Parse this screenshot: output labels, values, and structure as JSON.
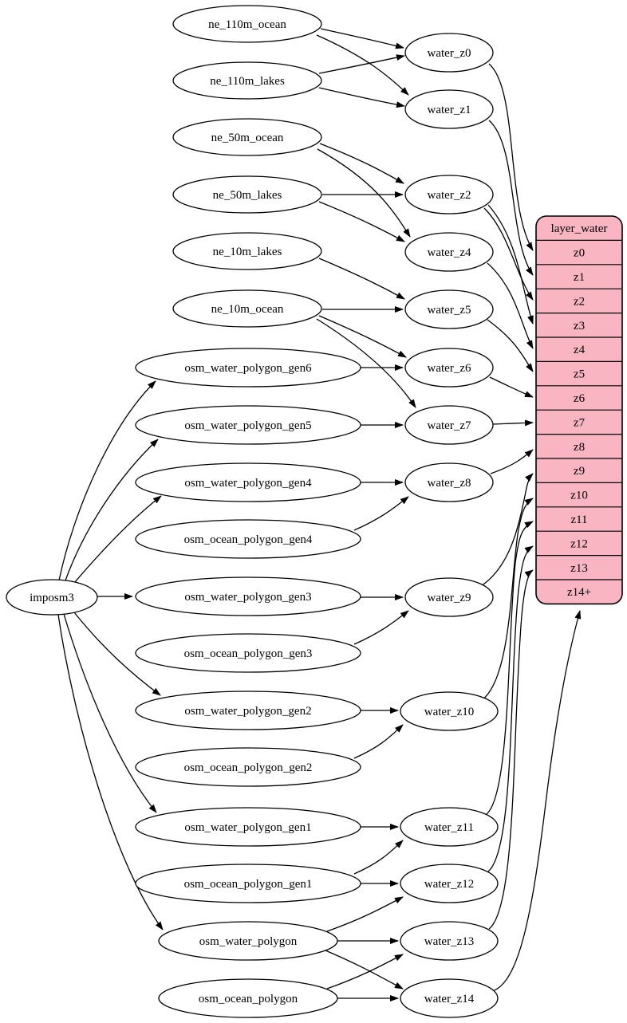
{
  "graph": {
    "colors": {
      "background": "#ffffff",
      "edge": "#000000",
      "node_fill": "#ffffff",
      "table_fill": "#f9b5c2",
      "table_stroke": "#000000"
    },
    "table": {
      "title": "layer_water",
      "rows": [
        "z0",
        "z1",
        "z2",
        "z3",
        "z4",
        "z5",
        "z6",
        "z7",
        "z8",
        "z9",
        "z10",
        "z11",
        "z12",
        "z13",
        "z14+"
      ]
    },
    "nodes": [
      {
        "id": "ne_110m_ocean",
        "label": "ne_110m_ocean",
        "kind": "source"
      },
      {
        "id": "ne_110m_lakes",
        "label": "ne_110m_lakes",
        "kind": "source"
      },
      {
        "id": "ne_50m_ocean",
        "label": "ne_50m_ocean",
        "kind": "source"
      },
      {
        "id": "ne_50m_lakes",
        "label": "ne_50m_lakes",
        "kind": "source"
      },
      {
        "id": "ne_10m_lakes",
        "label": "ne_10m_lakes",
        "kind": "source"
      },
      {
        "id": "ne_10m_ocean",
        "label": "ne_10m_ocean",
        "kind": "source"
      },
      {
        "id": "osm_water_polygon_gen6",
        "label": "osm_water_polygon_gen6",
        "kind": "source"
      },
      {
        "id": "osm_water_polygon_gen5",
        "label": "osm_water_polygon_gen5",
        "kind": "source"
      },
      {
        "id": "osm_water_polygon_gen4",
        "label": "osm_water_polygon_gen4",
        "kind": "source"
      },
      {
        "id": "osm_ocean_polygon_gen4",
        "label": "osm_ocean_polygon_gen4",
        "kind": "source"
      },
      {
        "id": "imposm3",
        "label": "imposm3",
        "kind": "importer"
      },
      {
        "id": "osm_water_polygon_gen3",
        "label": "osm_water_polygon_gen3",
        "kind": "source"
      },
      {
        "id": "osm_ocean_polygon_gen3",
        "label": "osm_ocean_polygon_gen3",
        "kind": "source"
      },
      {
        "id": "osm_water_polygon_gen2",
        "label": "osm_water_polygon_gen2",
        "kind": "source"
      },
      {
        "id": "osm_ocean_polygon_gen2",
        "label": "osm_ocean_polygon_gen2",
        "kind": "source"
      },
      {
        "id": "osm_water_polygon_gen1",
        "label": "osm_water_polygon_gen1",
        "kind": "source"
      },
      {
        "id": "osm_ocean_polygon_gen1",
        "label": "osm_ocean_polygon_gen1",
        "kind": "source"
      },
      {
        "id": "osm_water_polygon",
        "label": "osm_water_polygon",
        "kind": "source"
      },
      {
        "id": "osm_ocean_polygon",
        "label": "osm_ocean_polygon",
        "kind": "source"
      },
      {
        "id": "water_z0",
        "label": "water_z0",
        "kind": "intermediate"
      },
      {
        "id": "water_z1",
        "label": "water_z1",
        "kind": "intermediate"
      },
      {
        "id": "water_z2",
        "label": "water_z2",
        "kind": "intermediate"
      },
      {
        "id": "water_z4",
        "label": "water_z4",
        "kind": "intermediate"
      },
      {
        "id": "water_z5",
        "label": "water_z5",
        "kind": "intermediate"
      },
      {
        "id": "water_z6",
        "label": "water_z6",
        "kind": "intermediate"
      },
      {
        "id": "water_z7",
        "label": "water_z7",
        "kind": "intermediate"
      },
      {
        "id": "water_z8",
        "label": "water_z8",
        "kind": "intermediate"
      },
      {
        "id": "water_z9",
        "label": "water_z9",
        "kind": "intermediate"
      },
      {
        "id": "water_z10",
        "label": "water_z10",
        "kind": "intermediate"
      },
      {
        "id": "water_z11",
        "label": "water_z11",
        "kind": "intermediate"
      },
      {
        "id": "water_z12",
        "label": "water_z12",
        "kind": "intermediate"
      },
      {
        "id": "water_z13",
        "label": "water_z13",
        "kind": "intermediate"
      },
      {
        "id": "water_z14",
        "label": "water_z14",
        "kind": "intermediate"
      }
    ],
    "edges": [
      {
        "from": "ne_110m_ocean",
        "to": "water_z0"
      },
      {
        "from": "ne_110m_ocean",
        "to": "water_z1"
      },
      {
        "from": "ne_110m_lakes",
        "to": "water_z0"
      },
      {
        "from": "ne_110m_lakes",
        "to": "water_z1"
      },
      {
        "from": "ne_50m_ocean",
        "to": "water_z2"
      },
      {
        "from": "ne_50m_ocean",
        "to": "water_z4"
      },
      {
        "from": "ne_50m_lakes",
        "to": "water_z2"
      },
      {
        "from": "ne_50m_lakes",
        "to": "water_z4"
      },
      {
        "from": "ne_10m_lakes",
        "to": "water_z5"
      },
      {
        "from": "ne_10m_ocean",
        "to": "water_z5"
      },
      {
        "from": "ne_10m_ocean",
        "to": "water_z6"
      },
      {
        "from": "ne_10m_ocean",
        "to": "water_z7"
      },
      {
        "from": "osm_water_polygon_gen6",
        "to": "water_z6"
      },
      {
        "from": "osm_water_polygon_gen5",
        "to": "water_z7"
      },
      {
        "from": "osm_water_polygon_gen4",
        "to": "water_z8"
      },
      {
        "from": "osm_ocean_polygon_gen4",
        "to": "water_z8"
      },
      {
        "from": "osm_water_polygon_gen3",
        "to": "water_z9"
      },
      {
        "from": "osm_ocean_polygon_gen3",
        "to": "water_z9"
      },
      {
        "from": "osm_water_polygon_gen2",
        "to": "water_z10"
      },
      {
        "from": "osm_ocean_polygon_gen2",
        "to": "water_z10"
      },
      {
        "from": "osm_water_polygon_gen1",
        "to": "water_z11"
      },
      {
        "from": "osm_ocean_polygon_gen1",
        "to": "water_z11"
      },
      {
        "from": "osm_ocean_polygon_gen1",
        "to": "water_z12"
      },
      {
        "from": "osm_water_polygon",
        "to": "water_z12"
      },
      {
        "from": "osm_water_polygon",
        "to": "water_z13"
      },
      {
        "from": "osm_ocean_polygon",
        "to": "water_z13"
      },
      {
        "from": "osm_water_polygon",
        "to": "water_z14"
      },
      {
        "from": "osm_ocean_polygon",
        "to": "water_z14"
      },
      {
        "from": "imposm3",
        "to": "osm_water_polygon_gen6"
      },
      {
        "from": "imposm3",
        "to": "osm_water_polygon_gen5"
      },
      {
        "from": "imposm3",
        "to": "osm_water_polygon_gen4"
      },
      {
        "from": "imposm3",
        "to": "osm_water_polygon_gen3"
      },
      {
        "from": "imposm3",
        "to": "osm_water_polygon_gen2"
      },
      {
        "from": "imposm3",
        "to": "osm_water_polygon_gen1"
      },
      {
        "from": "imposm3",
        "to": "osm_water_polygon"
      },
      {
        "from": "water_z0",
        "to": "z0"
      },
      {
        "from": "water_z1",
        "to": "z1"
      },
      {
        "from": "water_z2",
        "to": "z2"
      },
      {
        "from": "water_z2",
        "to": "z3"
      },
      {
        "from": "water_z4",
        "to": "z4"
      },
      {
        "from": "water_z5",
        "to": "z5"
      },
      {
        "from": "water_z6",
        "to": "z6"
      },
      {
        "from": "water_z7",
        "to": "z7"
      },
      {
        "from": "water_z8",
        "to": "z8"
      },
      {
        "from": "water_z9",
        "to": "z9"
      },
      {
        "from": "water_z10",
        "to": "z10"
      },
      {
        "from": "water_z11",
        "to": "z11"
      },
      {
        "from": "water_z12",
        "to": "z12"
      },
      {
        "from": "water_z13",
        "to": "z13"
      },
      {
        "from": "water_z14",
        "to": "z14+"
      }
    ]
  }
}
